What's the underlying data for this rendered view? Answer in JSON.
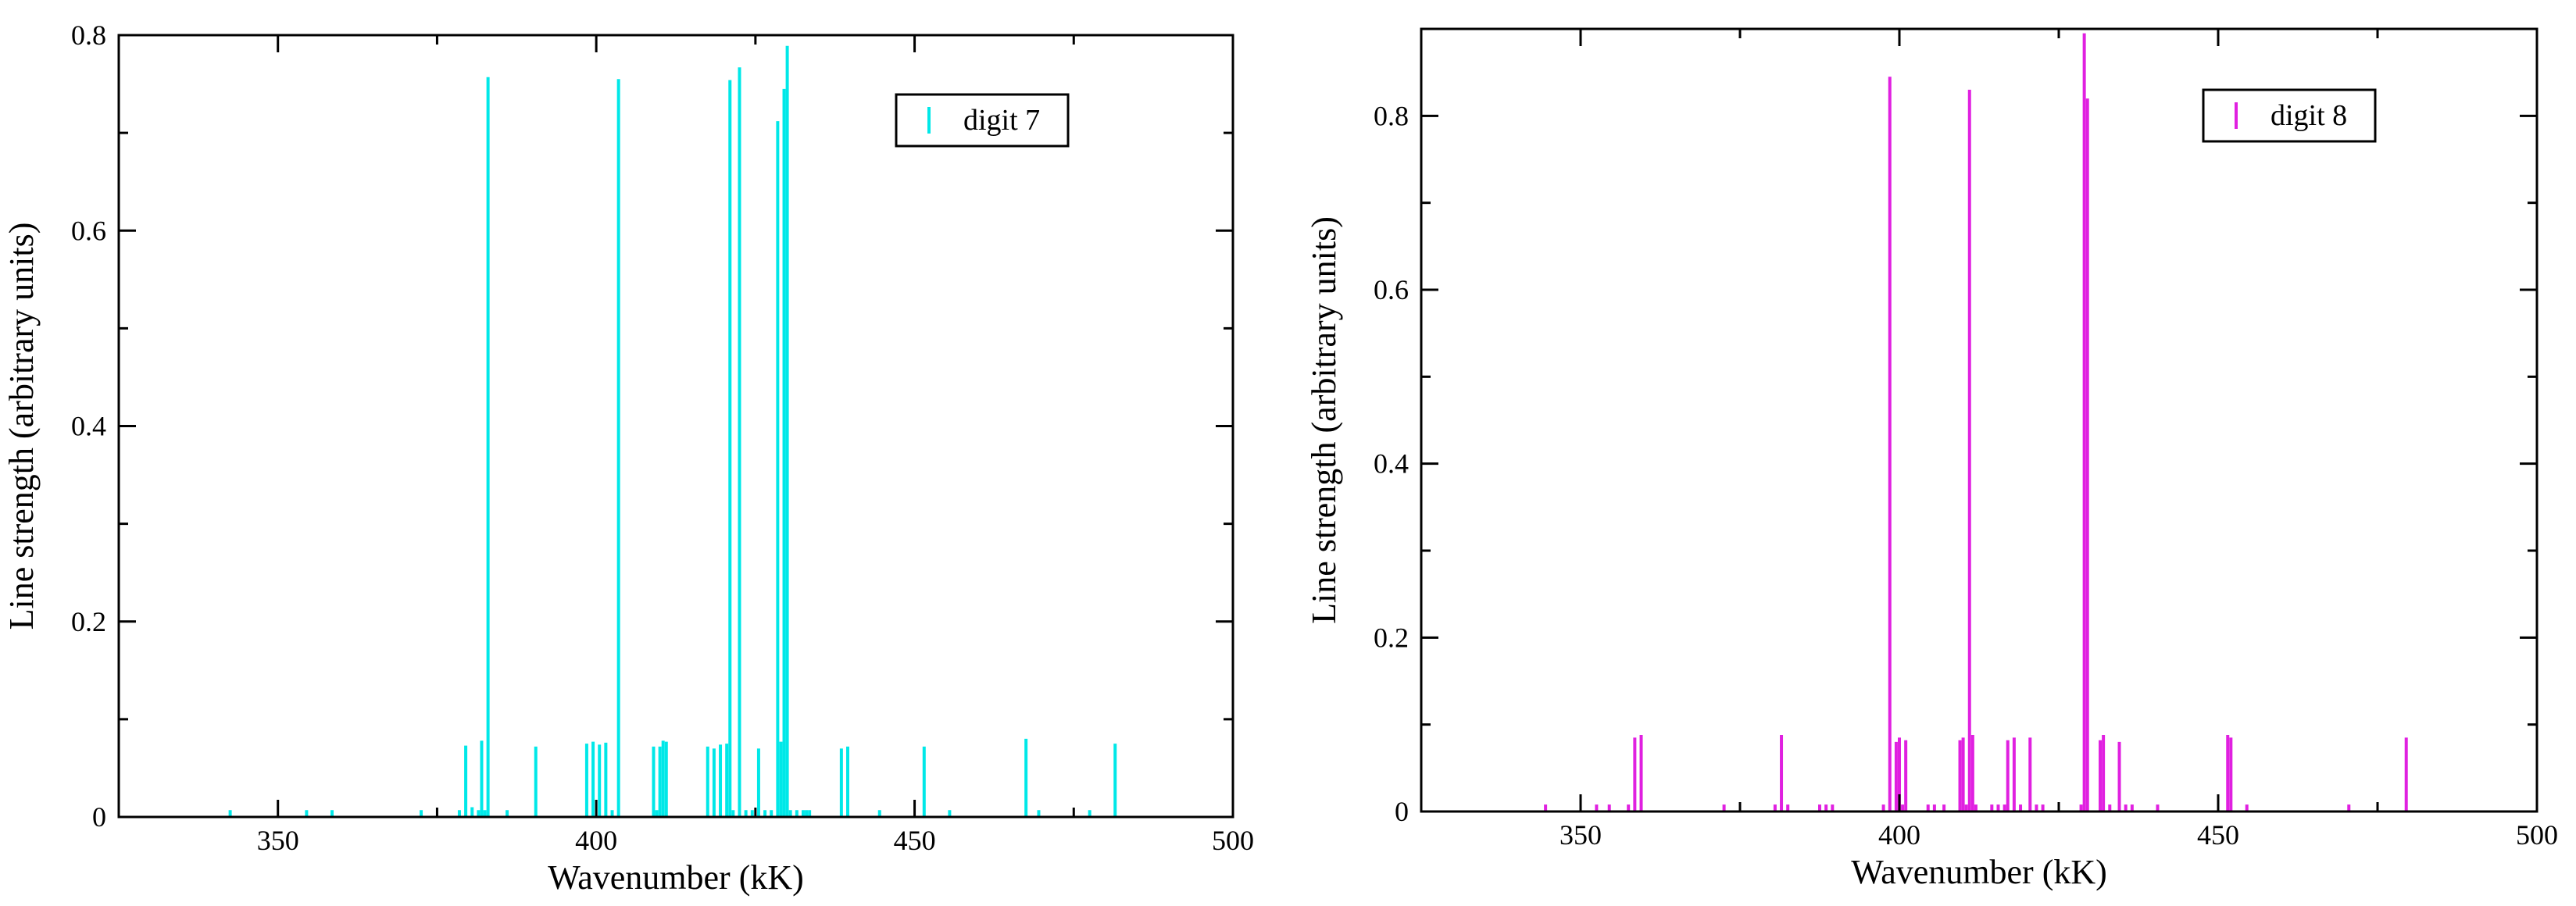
{
  "chart_data": [
    {
      "type": "bar",
      "title": "",
      "xlabel": "Wavenumber (kK)",
      "ylabel": "Line strength (arbitrary units)",
      "xlim": [
        325,
        500
      ],
      "ylim": [
        0,
        0.8
      ],
      "xticks": [
        350,
        400,
        450,
        500
      ],
      "yticks": [
        0,
        0.2,
        0.4,
        0.6,
        0.8
      ],
      "grid": false,
      "legend": {
        "position": "top-right",
        "entries": [
          "digit 7"
        ]
      },
      "color": "#00e8e8",
      "series": [
        {
          "name": "digit 7",
          "x": [
            342.5,
            354.5,
            358.5,
            372.5,
            378.5,
            379.5,
            380.5,
            381.5,
            382.0,
            382.5,
            383.0,
            386.0,
            390.5,
            398.5,
            399.5,
            400.5,
            401.5,
            402.5,
            403.5,
            409.0,
            409.5,
            410.0,
            410.5,
            411.0,
            417.5,
            418.5,
            419.5,
            420.5,
            421.0,
            421.5,
            422.5,
            423.5,
            424.5,
            425.5,
            426.5,
            427.5,
            428.5,
            429.0,
            429.5,
            430.0,
            430.5,
            431.5,
            432.5,
            433.0,
            433.5,
            438.5,
            439.5,
            444.5,
            451.5,
            455.5,
            467.5,
            469.5,
            477.5,
            481.5
          ],
          "values": [
            0.007,
            0.007,
            0.007,
            0.007,
            0.007,
            0.073,
            0.01,
            0.007,
            0.078,
            0.007,
            0.757,
            0.007,
            0.072,
            0.075,
            0.077,
            0.074,
            0.076,
            0.007,
            0.755,
            0.072,
            0.007,
            0.072,
            0.078,
            0.077,
            0.072,
            0.07,
            0.074,
            0.075,
            0.754,
            0.007,
            0.767,
            0.007,
            0.007,
            0.07,
            0.007,
            0.007,
            0.712,
            0.077,
            0.745,
            0.789,
            0.007,
            0.007,
            0.007,
            0.007,
            0.007,
            0.07,
            0.072,
            0.007,
            0.072,
            0.007,
            0.08,
            0.007,
            0.007,
            0.075
          ]
        }
      ]
    },
    {
      "type": "bar",
      "title": "",
      "xlabel": "Wavenumber (kK)",
      "ylabel": "Line strength (arbitrary units)",
      "xlim": [
        325,
        500
      ],
      "ylim": [
        0,
        0.9
      ],
      "xticks": [
        350,
        400,
        450,
        500
      ],
      "yticks": [
        0,
        0.2,
        0.4,
        0.6,
        0.8
      ],
      "grid": false,
      "legend": {
        "position": "top-right",
        "entries": [
          "digit 8"
        ]
      },
      "color": "#e020e0",
      "series": [
        {
          "name": "digit 8",
          "x": [
            344.5,
            352.5,
            354.5,
            357.5,
            358.5,
            359.5,
            372.5,
            380.5,
            381.5,
            382.5,
            387.5,
            388.5,
            389.5,
            397.5,
            398.5,
            399.5,
            400.0,
            400.5,
            401.0,
            404.5,
            405.5,
            407.0,
            409.5,
            410.0,
            410.5,
            411.0,
            411.5,
            412.0,
            414.5,
            415.5,
            416.5,
            417.0,
            418.0,
            419.0,
            420.5,
            421.5,
            422.5,
            428.5,
            429.0,
            429.5,
            431.5,
            432.0,
            433.0,
            434.5,
            435.5,
            436.5,
            440.5,
            451.5,
            452.0,
            454.5,
            470.5,
            479.5
          ],
          "values": [
            0.008,
            0.008,
            0.008,
            0.008,
            0.085,
            0.088,
            0.008,
            0.008,
            0.088,
            0.008,
            0.008,
            0.008,
            0.008,
            0.008,
            0.845,
            0.08,
            0.085,
            0.008,
            0.082,
            0.008,
            0.008,
            0.008,
            0.082,
            0.085,
            0.008,
            0.83,
            0.088,
            0.008,
            0.008,
            0.008,
            0.008,
            0.082,
            0.085,
            0.008,
            0.085,
            0.008,
            0.008,
            0.008,
            0.895,
            0.82,
            0.082,
            0.088,
            0.008,
            0.08,
            0.008,
            0.008,
            0.008,
            0.088,
            0.085,
            0.008,
            0.008,
            0.085
          ]
        }
      ]
    }
  ]
}
